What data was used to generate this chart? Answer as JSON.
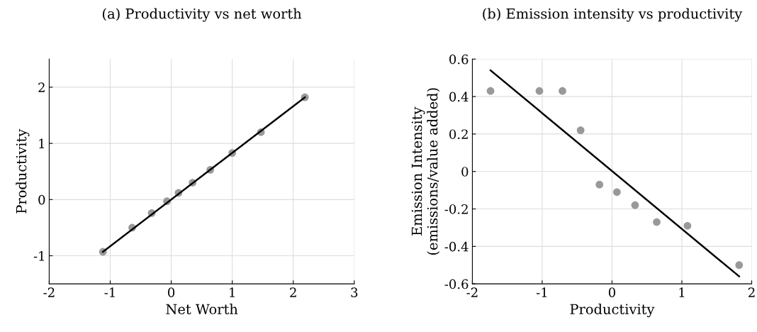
{
  "chart_data": [
    {
      "type": "scatter",
      "title": "(a) Productivity vs net worth",
      "xlabel": "Net Worth",
      "ylabel": "Productivity",
      "xlim": [
        -2,
        3
      ],
      "ylim": [
        -1.5,
        2.5
      ],
      "xticks": [
        -2,
        -1,
        0,
        1,
        2,
        3
      ],
      "yticks": [
        -1,
        0,
        1,
        2
      ],
      "grid": true,
      "marker": "circle",
      "series": [
        {
          "color": "#999999",
          "x": [
            -1.12,
            -0.64,
            -0.32,
            -0.07,
            0.12,
            0.35,
            0.64,
            1.0,
            1.47,
            2.19
          ],
          "values": [
            -0.93,
            -0.5,
            -0.24,
            -0.03,
            0.12,
            0.3,
            0.53,
            0.83,
            1.2,
            1.82
          ]
        },
        {
          "type": "line",
          "marker": "none",
          "color": "#000000",
          "x": [
            -1.12,
            2.19
          ],
          "values": [
            -0.93,
            1.82
          ]
        }
      ]
    },
    {
      "type": "scatter",
      "title": "(b) Emission intensity vs productivity",
      "xlabel": "Productivity",
      "ylabel": "Emission Intensity\n(emissions/value added)",
      "xlim": [
        -2,
        2
      ],
      "ylim": [
        -0.6,
        0.6
      ],
      "xticks": [
        -2,
        -1,
        0,
        1,
        2
      ],
      "yticks": [
        -0.6,
        -0.4,
        -0.2,
        0,
        0.2,
        0.4,
        0.6
      ],
      "grid": true,
      "marker": "circle",
      "series": [
        {
          "color": "#999999",
          "x": [
            -1.74,
            -1.04,
            -0.71,
            -0.45,
            -0.18,
            0.07,
            0.33,
            0.64,
            1.08,
            1.82
          ],
          "values": [
            0.43,
            0.43,
            0.43,
            0.22,
            -0.07,
            -0.11,
            -0.18,
            -0.27,
            -0.29,
            -0.5
          ]
        },
        {
          "type": "line",
          "marker": "none",
          "color": "#000000",
          "x": [
            -1.74,
            1.82
          ],
          "values": [
            0.54,
            -0.56
          ]
        }
      ]
    }
  ]
}
